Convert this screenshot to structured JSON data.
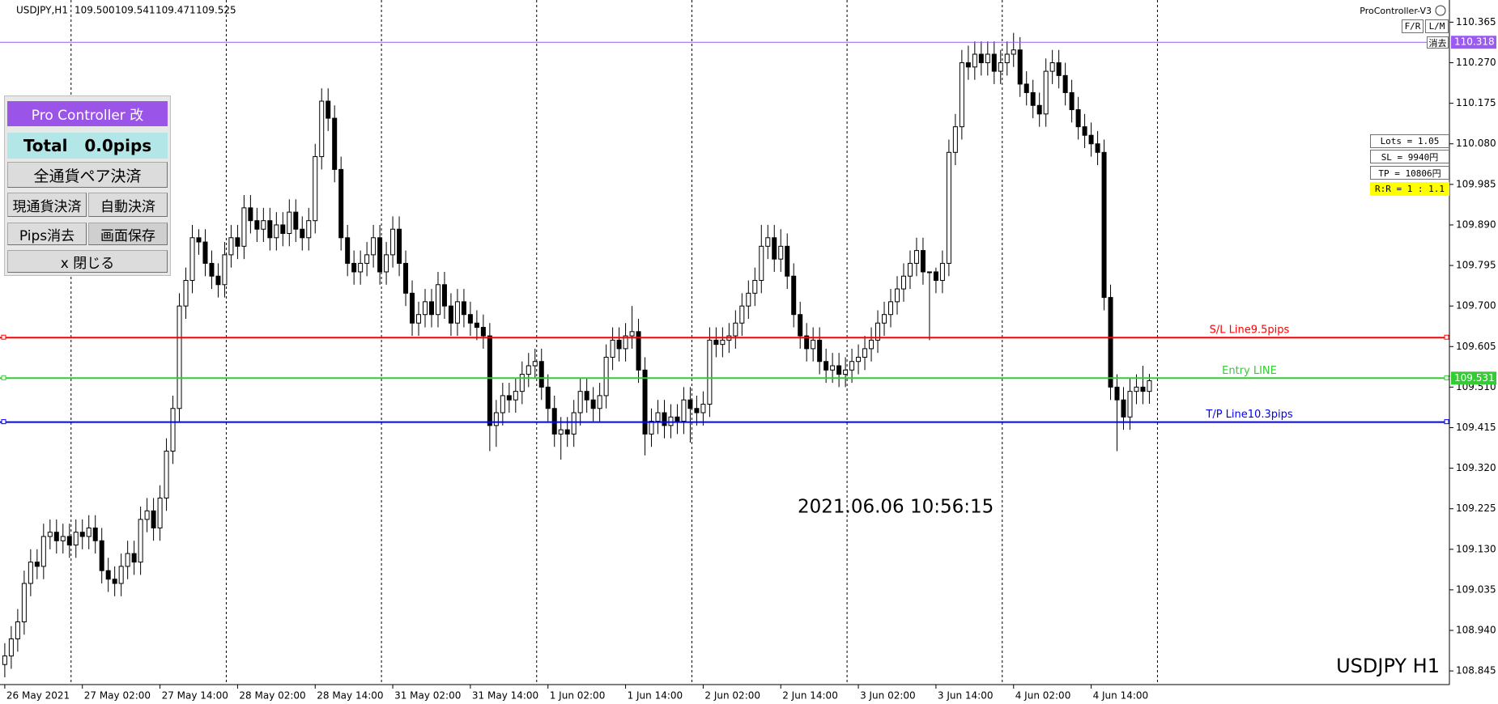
{
  "header": {
    "symbol": "USDJPY,H1",
    "ohlc_labels": [
      "109.500",
      "109.541",
      "109.471",
      "109.525"
    ]
  },
  "timestamp": "2021.06.06 10:56:15",
  "watermark": "USDJPY H1",
  "panel": {
    "title": "Pro Controller 改",
    "total": "Total   0.0pips",
    "close_all": "全通貨ペア決済",
    "close_current": "現通貨決済",
    "auto_close": "自動決済",
    "clear_pips": "Pips消去",
    "save_screen": "画面保存",
    "close_panel": "x 閉じる"
  },
  "top_right": {
    "name": "ProController-V3",
    "buttons": [
      "F/R",
      "L/M"
    ],
    "erase": "消去"
  },
  "info": {
    "lots": "Lots = 1.05",
    "sl": "SL = 9940円",
    "tp": "TP = 10806円",
    "rr": "R:R = 1 : 1.1"
  },
  "chart_data": {
    "type": "candlestick",
    "open": [
      108.86,
      108.88,
      108.92,
      108.96,
      109.05,
      109.1,
      109.09,
      109.16,
      109.17,
      109.15,
      109.16,
      109.14,
      109.17,
      109.16,
      109.18,
      109.15,
      109.08,
      109.06,
      109.05,
      109.09,
      109.12,
      109.1,
      109.2,
      109.22,
      109.18,
      109.25,
      109.36,
      109.46,
      109.7,
      109.76,
      109.86,
      109.85,
      109.8,
      109.77,
      109.75,
      109.82,
      109.86,
      109.84,
      109.93,
      109.9,
      109.88,
      109.9,
      109.86,
      109.89,
      109.87,
      109.92,
      109.88,
      109.86,
      109.9,
      110.05,
      110.18,
      110.14,
      110.02,
      109.86,
      109.8,
      109.78,
      109.8,
      109.82,
      109.86,
      109.78,
      109.82,
      109.88,
      109.8,
      109.73,
      109.66,
      109.68,
      109.71,
      109.68,
      109.75,
      109.7,
      109.66,
      109.71,
      109.68,
      109.66,
      109.65,
      109.63,
      109.42,
      109.45,
      109.49,
      109.48,
      109.5,
      109.54,
      109.56,
      109.57,
      109.51,
      109.46,
      109.4,
      109.41,
      109.4,
      109.45,
      109.5,
      109.48,
      109.46,
      109.49,
      109.58,
      109.62,
      109.6,
      109.63,
      109.64,
      109.55,
      109.4,
      109.43,
      109.45,
      109.42,
      109.44,
      109.43,
      109.48,
      109.46,
      109.45,
      109.47,
      109.62,
      109.61,
      109.62,
      109.63,
      109.66,
      109.7,
      109.73,
      109.76,
      109.84,
      109.86,
      109.81,
      109.84,
      109.77,
      109.68,
      109.63,
      109.6,
      109.62,
      109.57,
      109.55,
      109.56,
      109.54,
      109.55,
      109.57,
      109.58,
      109.6,
      109.62,
      109.66,
      109.68,
      109.71,
      109.74,
      109.77,
      109.8,
      109.83,
      109.78,
      109.78,
      109.76,
      109.8,
      110.06,
      110.12,
      110.27,
      110.26,
      110.29,
      110.27,
      110.29,
      110.25,
      110.27,
      110.29,
      110.3,
      110.22,
      110.2,
      110.17,
      110.15,
      110.25,
      110.27,
      110.24,
      110.2,
      110.16,
      110.12,
      110.1,
      110.08,
      110.06,
      109.72,
      109.51,
      109.48,
      109.44,
      109.5,
      109.51,
      109.5
    ],
    "high": [
      108.91,
      108.95,
      108.99,
      109.08,
      109.13,
      109.13,
      109.19,
      109.2,
      109.2,
      109.19,
      109.19,
      109.2,
      109.2,
      109.21,
      109.21,
      109.18,
      109.11,
      109.09,
      109.12,
      109.15,
      109.15,
      109.23,
      109.25,
      109.25,
      109.28,
      109.39,
      109.49,
      109.73,
      109.79,
      109.89,
      109.88,
      109.88,
      109.83,
      109.8,
      109.85,
      109.89,
      109.89,
      109.96,
      109.96,
      109.93,
      109.93,
      109.93,
      109.92,
      109.92,
      109.95,
      109.95,
      109.91,
      109.93,
      110.08,
      110.21,
      110.21,
      110.17,
      110.05,
      109.89,
      109.83,
      109.83,
      109.85,
      109.89,
      109.89,
      109.85,
      109.91,
      109.91,
      109.83,
      109.76,
      109.71,
      109.74,
      109.74,
      109.78,
      109.78,
      109.73,
      109.74,
      109.74,
      109.71,
      109.69,
      109.68,
      109.66,
      109.48,
      109.52,
      109.52,
      109.53,
      109.57,
      109.59,
      109.6,
      109.6,
      109.54,
      109.49,
      109.44,
      109.44,
      109.48,
      109.53,
      109.53,
      109.51,
      109.52,
      109.61,
      109.65,
      109.65,
      109.66,
      109.7,
      109.67,
      109.58,
      109.46,
      109.48,
      109.48,
      109.47,
      109.47,
      109.51,
      109.51,
      109.49,
      109.5,
      109.65,
      109.65,
      109.65,
      109.66,
      109.69,
      109.73,
      109.76,
      109.79,
      109.89,
      109.89,
      109.89,
      109.88,
      109.87,
      109.8,
      109.71,
      109.66,
      109.65,
      109.65,
      109.6,
      109.59,
      109.59,
      109.58,
      109.6,
      109.61,
      109.63,
      109.65,
      109.69,
      109.71,
      109.74,
      109.77,
      109.8,
      109.83,
      109.86,
      109.86,
      109.78,
      109.79,
      109.83,
      110.09,
      110.15,
      110.3,
      110.31,
      110.32,
      110.32,
      110.32,
      110.32,
      110.3,
      110.32,
      110.34,
      110.33,
      110.25,
      110.23,
      110.2,
      110.28,
      110.3,
      110.3,
      110.27,
      110.23,
      110.19,
      110.15,
      110.13,
      110.11,
      110.09,
      109.75,
      109.54,
      109.51,
      109.53,
      109.54,
      109.56,
      109.541
    ],
    "low": [
      108.83,
      108.85,
      108.89,
      108.93,
      109.02,
      109.06,
      109.06,
      109.13,
      109.12,
      109.12,
      109.11,
      109.11,
      109.13,
      109.13,
      109.12,
      109.05,
      109.03,
      109.02,
      109.02,
      109.06,
      109.07,
      109.07,
      109.17,
      109.15,
      109.15,
      109.22,
      109.33,
      109.43,
      109.67,
      109.73,
      109.82,
      109.77,
      109.74,
      109.72,
      109.72,
      109.79,
      109.81,
      109.81,
      109.87,
      109.85,
      109.85,
      109.83,
      109.83,
      109.84,
      109.84,
      109.85,
      109.83,
      109.83,
      109.87,
      110.02,
      110.11,
      109.99,
      109.83,
      109.77,
      109.75,
      109.75,
      109.77,
      109.79,
      109.75,
      109.75,
      109.79,
      109.77,
      109.7,
      109.63,
      109.63,
      109.65,
      109.65,
      109.65,
      109.67,
      109.63,
      109.63,
      109.65,
      109.63,
      109.62,
      109.6,
      109.36,
      109.37,
      109.42,
      109.45,
      109.45,
      109.47,
      109.51,
      109.53,
      109.48,
      109.43,
      109.37,
      109.34,
      109.37,
      109.37,
      109.42,
      109.45,
      109.43,
      109.43,
      109.46,
      109.55,
      109.57,
      109.57,
      109.6,
      109.52,
      109.35,
      109.37,
      109.4,
      109.39,
      109.39,
      109.4,
      109.4,
      109.38,
      109.42,
      109.42,
      109.44,
      109.58,
      109.58,
      109.59,
      109.6,
      109.63,
      109.67,
      109.7,
      109.73,
      109.81,
      109.78,
      109.78,
      109.74,
      109.65,
      109.6,
      109.57,
      109.57,
      109.54,
      109.52,
      109.52,
      109.51,
      109.51,
      109.52,
      109.54,
      109.55,
      109.57,
      109.59,
      109.63,
      109.65,
      109.68,
      109.71,
      109.74,
      109.77,
      109.75,
      109.62,
      109.73,
      109.73,
      109.77,
      110.03,
      110.09,
      110.23,
      110.23,
      110.24,
      110.24,
      110.22,
      110.22,
      110.24,
      110.26,
      110.19,
      110.17,
      110.14,
      110.12,
      110.12,
      110.22,
      110.21,
      110.17,
      110.13,
      110.09,
      110.07,
      110.05,
      110.03,
      109.69,
      109.48,
      109.36,
      109.41,
      109.41,
      109.47,
      109.47,
      109.471
    ],
    "close": [
      108.88,
      108.92,
      108.96,
      109.05,
      109.1,
      109.09,
      109.16,
      109.17,
      109.15,
      109.16,
      109.14,
      109.17,
      109.16,
      109.18,
      109.15,
      109.08,
      109.06,
      109.05,
      109.09,
      109.12,
      109.1,
      109.2,
      109.22,
      109.18,
      109.25,
      109.36,
      109.46,
      109.7,
      109.76,
      109.86,
      109.85,
      109.8,
      109.77,
      109.75,
      109.82,
      109.86,
      109.84,
      109.93,
      109.9,
      109.88,
      109.9,
      109.86,
      109.89,
      109.87,
      109.92,
      109.88,
      109.86,
      109.9,
      110.05,
      110.18,
      110.14,
      110.02,
      109.86,
      109.8,
      109.78,
      109.8,
      109.82,
      109.86,
      109.78,
      109.82,
      109.88,
      109.8,
      109.73,
      109.66,
      109.68,
      109.71,
      109.68,
      109.75,
      109.7,
      109.66,
      109.71,
      109.68,
      109.66,
      109.65,
      109.63,
      109.42,
      109.45,
      109.49,
      109.48,
      109.5,
      109.54,
      109.56,
      109.57,
      109.51,
      109.46,
      109.4,
      109.41,
      109.4,
      109.45,
      109.5,
      109.48,
      109.46,
      109.49,
      109.58,
      109.62,
      109.6,
      109.63,
      109.64,
      109.55,
      109.4,
      109.43,
      109.45,
      109.42,
      109.44,
      109.43,
      109.48,
      109.46,
      109.45,
      109.47,
      109.62,
      109.61,
      109.62,
      109.63,
      109.66,
      109.7,
      109.73,
      109.76,
      109.84,
      109.86,
      109.81,
      109.84,
      109.77,
      109.68,
      109.63,
      109.6,
      109.62,
      109.57,
      109.55,
      109.56,
      109.54,
      109.55,
      109.57,
      109.58,
      109.6,
      109.62,
      109.66,
      109.68,
      109.71,
      109.74,
      109.77,
      109.8,
      109.83,
      109.78,
      109.78,
      109.76,
      109.8,
      110.06,
      110.12,
      110.27,
      110.26,
      110.29,
      110.27,
      110.29,
      110.25,
      110.27,
      110.29,
      110.3,
      110.22,
      110.2,
      110.17,
      110.15,
      110.25,
      110.27,
      110.24,
      110.2,
      110.16,
      110.12,
      110.1,
      110.08,
      110.06,
      109.72,
      109.51,
      109.48,
      109.44,
      109.5,
      109.51,
      109.5,
      109.525
    ],
    "bull_color": "#ffffff",
    "bear_color": "#000000",
    "line_color": "#000000",
    "xlim": [
      -0.74,
      223.4
    ],
    "xticks": [
      {
        "value": 0,
        "label": "26 May 2021"
      },
      {
        "value": 12,
        "label": "27 May 02:00"
      },
      {
        "value": 24,
        "label": "27 May 14:00"
      },
      {
        "value": 36,
        "label": "28 May 02:00"
      },
      {
        "value": 48,
        "label": "28 May 14:00"
      },
      {
        "value": 60,
        "label": "31 May 02:00"
      },
      {
        "value": 72,
        "label": "31 May 14:00"
      },
      {
        "value": 84,
        "label": "1 Jun 02:00"
      },
      {
        "value": 96,
        "label": "1 Jun 14:00"
      },
      {
        "value": 108,
        "label": "2 Jun 02:00"
      },
      {
        "value": 120,
        "label": "2 Jun 14:00"
      },
      {
        "value": 132,
        "label": "3 Jun 02:00"
      },
      {
        "value": 144,
        "label": "3 Jun 14:00"
      },
      {
        "value": 156,
        "label": "4 Jun 02:00"
      },
      {
        "value": 168,
        "label": "4 Jun 14:00"
      }
    ],
    "ylim": [
      108.813,
      110.417
    ],
    "yticks": [
      110.365,
      {
        "value": 110.27,
        "label": "110.270"
      },
      110.175,
      {
        "value": 110.08,
        "label": "110.080"
      },
      109.985,
      {
        "value": 109.89,
        "label": "109.890"
      },
      109.795,
      {
        "value": 109.7,
        "label": "109.700"
      },
      109.605,
      {
        "value": 109.51,
        "label": "109.510"
      },
      109.415,
      {
        "value": 109.32,
        "label": "109.320"
      },
      109.225,
      {
        "value": 109.13,
        "label": "109.130"
      },
      109.035,
      {
        "value": 108.94,
        "label": "108.940"
      },
      108.845
    ],
    "levels": [
      {
        "value": 110.318,
        "color": "#9a5cf0",
        "price_label": true
      },
      {
        "name": "S/L Line9.5pips",
        "value": 109.626,
        "color": "#ff0000",
        "price_label": false
      },
      {
        "name": "Entry LINE",
        "value": 109.531,
        "color": "#33cc33",
        "price_label": true
      },
      {
        "name": "T/P Line10.3pips",
        "value": 109.428,
        "color": "#0000ff",
        "price_label": false
      }
    ]
  }
}
